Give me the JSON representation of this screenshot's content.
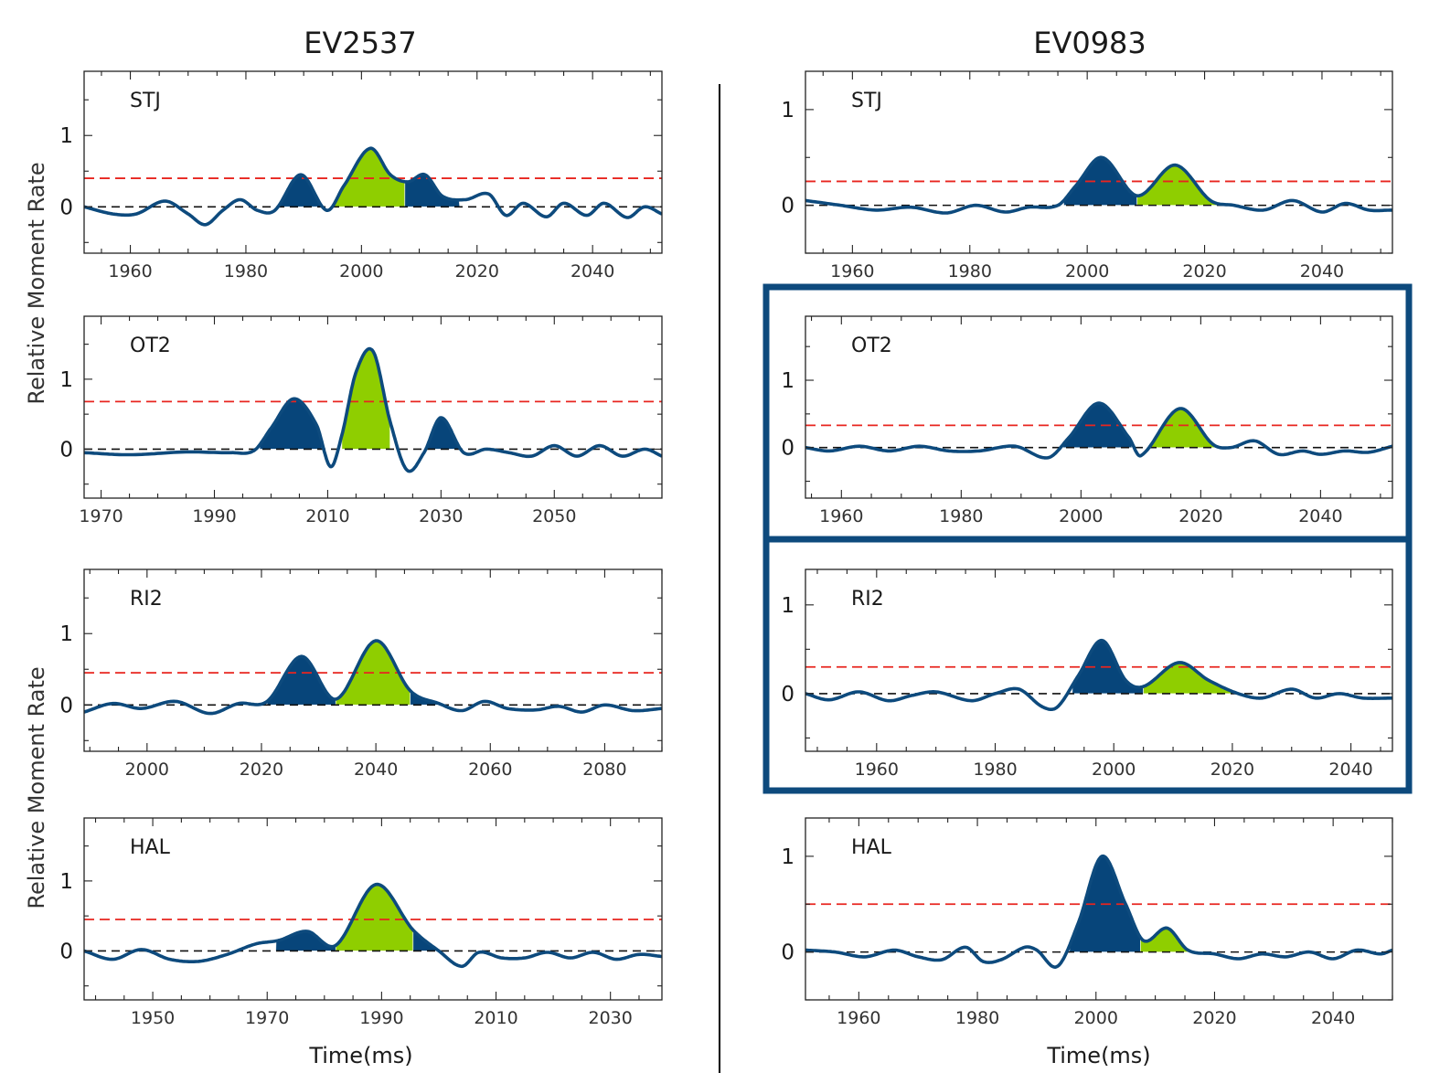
{
  "figure": {
    "column_titles": [
      "EV2537",
      "EV0983"
    ],
    "ylabel": "Relative Moment Rate",
    "xlabel": "Time(ms)"
  },
  "colors": {
    "trace": "#0d4a7d",
    "fill_primary": "#07457a",
    "fill_secondary": "#8fce00",
    "threshold": "#e8251f",
    "zero_line": "#111111",
    "highlight_box": "#0d4a7d",
    "divider": "#000000"
  },
  "chart_data": [
    {
      "type": "line",
      "column": "EV2537",
      "station": "STJ",
      "xlim": [
        1952,
        2052
      ],
      "ylim": [
        -0.65,
        1.9
      ],
      "xticks": [
        1960,
        1980,
        2000,
        2020,
        2040
      ],
      "yticks": [
        0,
        1
      ],
      "threshold": 0.4,
      "x": [
        1952,
        1957,
        1961,
        1966,
        1970,
        1973,
        1976,
        1979,
        1982,
        1985,
        1989.5,
        1994,
        1997,
        2001.5,
        2005,
        2008,
        2011,
        2014,
        2018,
        2022,
        2025,
        2028,
        2032,
        2035,
        2039,
        2042,
        2046,
        2049,
        2052
      ],
      "y": [
        0.0,
        -0.1,
        -0.1,
        0.08,
        -0.1,
        -0.25,
        -0.05,
        0.1,
        -0.05,
        -0.05,
        0.45,
        -0.05,
        0.3,
        0.82,
        0.45,
        0.35,
        0.45,
        0.15,
        0.1,
        0.18,
        -0.12,
        0.05,
        -0.14,
        0.05,
        -0.12,
        0.05,
        -0.15,
        0.0,
        -0.1
      ],
      "highlight_regions": [
        {
          "start": 1985,
          "end": 1994,
          "color": "primary"
        },
        {
          "start": 1994,
          "end": 2007.5,
          "color": "secondary"
        },
        {
          "start": 2007.5,
          "end": 2017,
          "color": "primary"
        }
      ]
    },
    {
      "type": "line",
      "column": "EV2537",
      "station": "OT2",
      "xlim": [
        1967,
        2069
      ],
      "ylim": [
        -0.7,
        1.9
      ],
      "xticks": [
        1970,
        1990,
        2010,
        2030,
        2050
      ],
      "yticks": [
        0,
        1
      ],
      "threshold": 0.68,
      "x": [
        1967,
        1975,
        1985,
        1993,
        1997,
        2000,
        2004,
        2008,
        2010.5,
        2012.5,
        2015,
        2018,
        2021,
        2024,
        2027,
        2030,
        2034,
        2038,
        2042,
        2046,
        2050,
        2054,
        2058,
        2062,
        2066,
        2069
      ],
      "y": [
        -0.05,
        -0.08,
        -0.04,
        -0.05,
        -0.02,
        0.3,
        0.72,
        0.35,
        -0.25,
        0.2,
        1.1,
        1.4,
        0.4,
        -0.3,
        -0.05,
        0.45,
        -0.05,
        0.0,
        -0.05,
        -0.1,
        0.05,
        -0.1,
        0.05,
        -0.1,
        0.0,
        -0.1
      ],
      "highlight_regions": [
        {
          "start": 1998,
          "end": 2009,
          "color": "primary"
        },
        {
          "start": 2012.5,
          "end": 2021,
          "color": "secondary"
        },
        {
          "start": 2027,
          "end": 2034,
          "color": "primary"
        }
      ]
    },
    {
      "type": "line",
      "column": "EV2537",
      "station": "RI2",
      "xlim": [
        1989,
        2090
      ],
      "ylim": [
        -0.65,
        1.9
      ],
      "xticks": [
        2000,
        2020,
        2040,
        2060,
        2080
      ],
      "yticks": [
        0,
        1
      ],
      "threshold": 0.45,
      "x": [
        1989,
        1994,
        1999,
        2005,
        2011,
        2016,
        2021,
        2027,
        2033,
        2040,
        2046,
        2051,
        2055,
        2059,
        2063,
        2068,
        2072,
        2076,
        2080,
        2085,
        2090
      ],
      "y": [
        -0.1,
        0.02,
        -0.05,
        0.05,
        -0.12,
        0.02,
        0.05,
        0.68,
        0.08,
        0.9,
        0.2,
        0.02,
        -0.08,
        0.05,
        -0.05,
        -0.07,
        -0.02,
        -0.1,
        0.0,
        -0.08,
        -0.05
      ],
      "highlight_regions": [
        {
          "start": 2021,
          "end": 2033,
          "color": "primary"
        },
        {
          "start": 2033,
          "end": 2046,
          "color": "secondary"
        },
        {
          "start": 2046,
          "end": 2051,
          "color": "primary"
        }
      ]
    },
    {
      "type": "line",
      "column": "EV2537",
      "station": "HAL",
      "xlim": [
        1938,
        2039
      ],
      "ylim": [
        -0.7,
        1.9
      ],
      "xticks": [
        1950,
        1970,
        1990,
        2010,
        2030
      ],
      "yticks": [
        0,
        1
      ],
      "threshold": 0.45,
      "x": [
        1938,
        1943,
        1948,
        1953,
        1958,
        1963,
        1968,
        1972,
        1977,
        1982,
        1989,
        1995.5,
        2000,
        2004,
        2007,
        2011,
        2015,
        2019,
        2023,
        2027,
        2031,
        2035,
        2039
      ],
      "y": [
        0.0,
        -0.12,
        0.02,
        -0.12,
        -0.15,
        -0.05,
        0.1,
        0.15,
        0.28,
        0.08,
        0.95,
        0.3,
        0.0,
        -0.22,
        -0.02,
        -0.1,
        -0.1,
        -0.02,
        -0.1,
        -0.02,
        -0.12,
        -0.05,
        -0.08
      ],
      "highlight_regions": [
        {
          "start": 1971.5,
          "end": 1982,
          "color": "primary"
        },
        {
          "start": 1982,
          "end": 1995.5,
          "color": "secondary"
        },
        {
          "start": 1995.5,
          "end": 2000,
          "color": "primary"
        }
      ]
    },
    {
      "type": "line",
      "column": "EV0983",
      "station": "STJ",
      "xlim": [
        1952,
        2052
      ],
      "ylim": [
        -0.5,
        1.4
      ],
      "xticks": [
        1960,
        1980,
        2000,
        2020,
        2040
      ],
      "yticks": [
        0,
        1
      ],
      "threshold": 0.25,
      "x": [
        1952,
        1958,
        1964,
        1970,
        1976,
        1981,
        1986,
        1990,
        1995,
        1998,
        2002.5,
        2008.5,
        2015,
        2021,
        2025,
        2030,
        2035,
        2040,
        2044,
        2048,
        2052
      ],
      "y": [
        0.05,
        0.0,
        -0.05,
        -0.02,
        -0.08,
        0.0,
        -0.07,
        -0.02,
        0.0,
        0.2,
        0.5,
        0.1,
        0.42,
        0.05,
        0.0,
        -0.05,
        0.05,
        -0.07,
        0.02,
        -0.05,
        -0.05
      ],
      "highlight_regions": [
        {
          "start": 1996,
          "end": 2008.5,
          "color": "primary"
        },
        {
          "start": 2008.5,
          "end": 2023,
          "color": "secondary"
        }
      ]
    },
    {
      "type": "line",
      "column": "EV0983",
      "station": "OT2",
      "xlim": [
        1954,
        2052
      ],
      "ylim": [
        -0.75,
        1.95
      ],
      "xticks": [
        1960,
        1980,
        2000,
        2020,
        2040
      ],
      "yticks": [
        0,
        1
      ],
      "threshold": 0.33,
      "x": [
        1954,
        1958,
        1963,
        1968,
        1973,
        1978,
        1983,
        1989,
        1994.5,
        1998,
        2003,
        2008,
        2010,
        2016.5,
        2022,
        2025,
        2029,
        2033,
        2037,
        2040,
        2044,
        2048,
        2052
      ],
      "y": [
        0.0,
        -0.05,
        0.02,
        -0.05,
        0.02,
        -0.05,
        -0.05,
        0.02,
        -0.15,
        0.15,
        0.66,
        0.15,
        -0.12,
        0.58,
        0.05,
        0.0,
        0.1,
        -0.1,
        -0.05,
        -0.1,
        -0.05,
        -0.07,
        0.02
      ],
      "highlight_regions": [
        {
          "start": 1997,
          "end": 2008.5,
          "color": "primary"
        },
        {
          "start": 2011,
          "end": 2022.5,
          "color": "secondary"
        }
      ]
    },
    {
      "type": "line",
      "column": "EV0983",
      "station": "RI2",
      "xlim": [
        1948,
        2047
      ],
      "ylim": [
        -0.65,
        1.4
      ],
      "xticks": [
        1960,
        1980,
        2000,
        2020,
        2040
      ],
      "yticks": [
        0,
        1
      ],
      "threshold": 0.3,
      "x": [
        1948,
        1952,
        1957,
        1962,
        1966,
        1970,
        1976,
        1980,
        1984,
        1988,
        1990.5,
        1994,
        1998,
        2002,
        2005,
        2011,
        2016,
        2021,
        2025,
        2030,
        2034,
        2038,
        2042,
        2047
      ],
      "y": [
        0.0,
        -0.07,
        0.02,
        -0.08,
        -0.02,
        0.02,
        -0.08,
        0.0,
        0.05,
        -0.15,
        -0.15,
        0.2,
        0.6,
        0.15,
        0.08,
        0.35,
        0.15,
        0.0,
        -0.05,
        0.05,
        -0.05,
        0.0,
        -0.05,
        -0.05
      ],
      "highlight_regions": [
        {
          "start": 1993,
          "end": 2005,
          "color": "primary"
        },
        {
          "start": 2005,
          "end": 2021,
          "color": "secondary"
        }
      ]
    },
    {
      "type": "line",
      "column": "EV0983",
      "station": "HAL",
      "xlim": [
        1951,
        2050
      ],
      "ylim": [
        -0.5,
        1.4
      ],
      "xticks": [
        1960,
        1980,
        2000,
        2020,
        2040
      ],
      "yticks": [
        0,
        1
      ],
      "threshold": 0.5,
      "x": [
        1951,
        1956,
        1961,
        1966,
        1970,
        1974,
        1978,
        1981,
        1984,
        1988,
        1990,
        1993.5,
        1997,
        2001,
        2005,
        2008,
        2012,
        2015.5,
        2020,
        2024,
        2028,
        2032,
        2036,
        2040,
        2044,
        2048,
        2050
      ],
      "y": [
        0.02,
        0.0,
        -0.05,
        0.02,
        -0.05,
        -0.08,
        0.05,
        -0.1,
        -0.08,
        0.05,
        0.02,
        -0.15,
        0.3,
        1.0,
        0.5,
        0.12,
        0.25,
        0.02,
        -0.02,
        -0.07,
        -0.02,
        -0.05,
        0.0,
        -0.07,
        0.02,
        -0.02,
        0.02
      ],
      "highlight_regions": [
        {
          "start": 1995.5,
          "end": 2007.5,
          "color": "primary"
        },
        {
          "start": 2007.5,
          "end": 2016,
          "color": "secondary"
        }
      ]
    }
  ]
}
